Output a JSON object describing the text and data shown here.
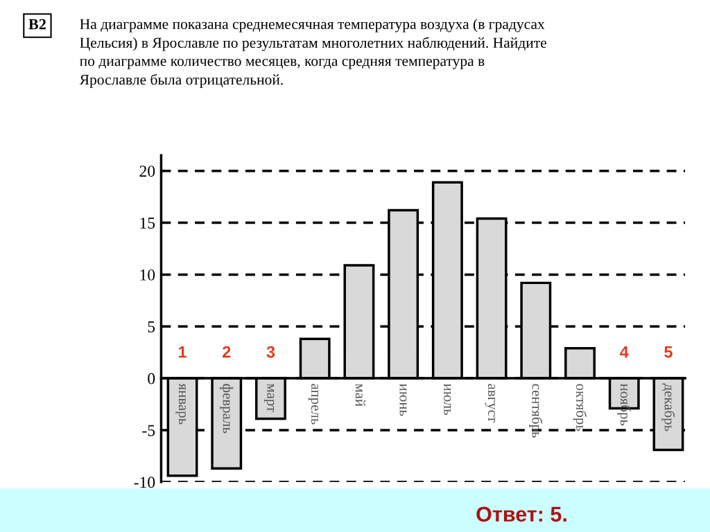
{
  "chart_data": {
    "type": "bar",
    "title": "На диаграмме показана среднемесячная температура воздуха (в градусах\nЦельсия) в Ярославле по результатам многолетних наблюдений. Найдите\nпо диаграмме количество месяцев, когда средняя температура в\nЯрославле была отрицательной.",
    "categories": [
      "январь",
      "февраль",
      "март",
      "апрель",
      "май",
      "июнь",
      "июль",
      "август",
      "сентябрь",
      "октябрь",
      "ноябрь",
      "декабрь"
    ],
    "values": [
      -9.4,
      -8.7,
      -3.9,
      3.8,
      10.9,
      16.2,
      18.9,
      15.4,
      9.2,
      2.9,
      -2.9,
      -6.9
    ],
    "color": "#d9d9d9",
    "ylim": [
      -10,
      21.5
    ],
    "yticks": [
      -10,
      -5,
      0,
      5,
      10,
      15,
      20
    ],
    "grid": "y",
    "line_style": "dashed",
    "tick_labels": "y",
    "annotations": [
      "В2",
      {
        "text": "1",
        "x": "январь",
        "y": 0
      },
      {
        "text": "2",
        "x": "февраль",
        "y": 0
      },
      {
        "text": "3",
        "x": "март",
        "y": 0
      },
      {
        "text": "4",
        "x": "ноябрь",
        "y": 0
      },
      {
        "text": "5",
        "x": "декабрь",
        "y": 0
      },
      "Ответ: 5."
    ]
  }
}
